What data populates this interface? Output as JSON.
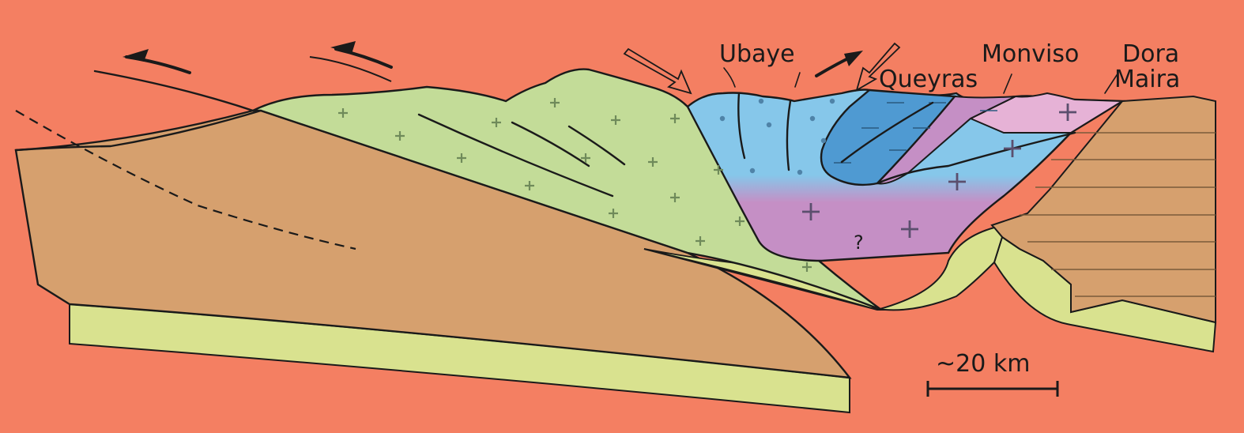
{
  "diagram": {
    "colors": {
      "background": "#f47f62",
      "foreland": "#d6a06e",
      "lower_layer": "#d9e28f",
      "green_unit": "#c3dc98",
      "light_blue": "#86c7ea",
      "dark_blue": "#4f9ad2",
      "purple": "#c58fc5",
      "pink": "#e6b2d6"
    },
    "labels": {
      "ubaye": "Ubaye",
      "queyras": "Queyras",
      "monviso": "Monviso",
      "dora_line1": "Dora",
      "dora_line2": "Maira",
      "question": "?"
    },
    "scale_bar": {
      "label": "~20 km"
    },
    "icons": [
      "left-arrow-icon",
      "right-arrow-icon",
      "hollow-arrow-icon"
    ]
  }
}
